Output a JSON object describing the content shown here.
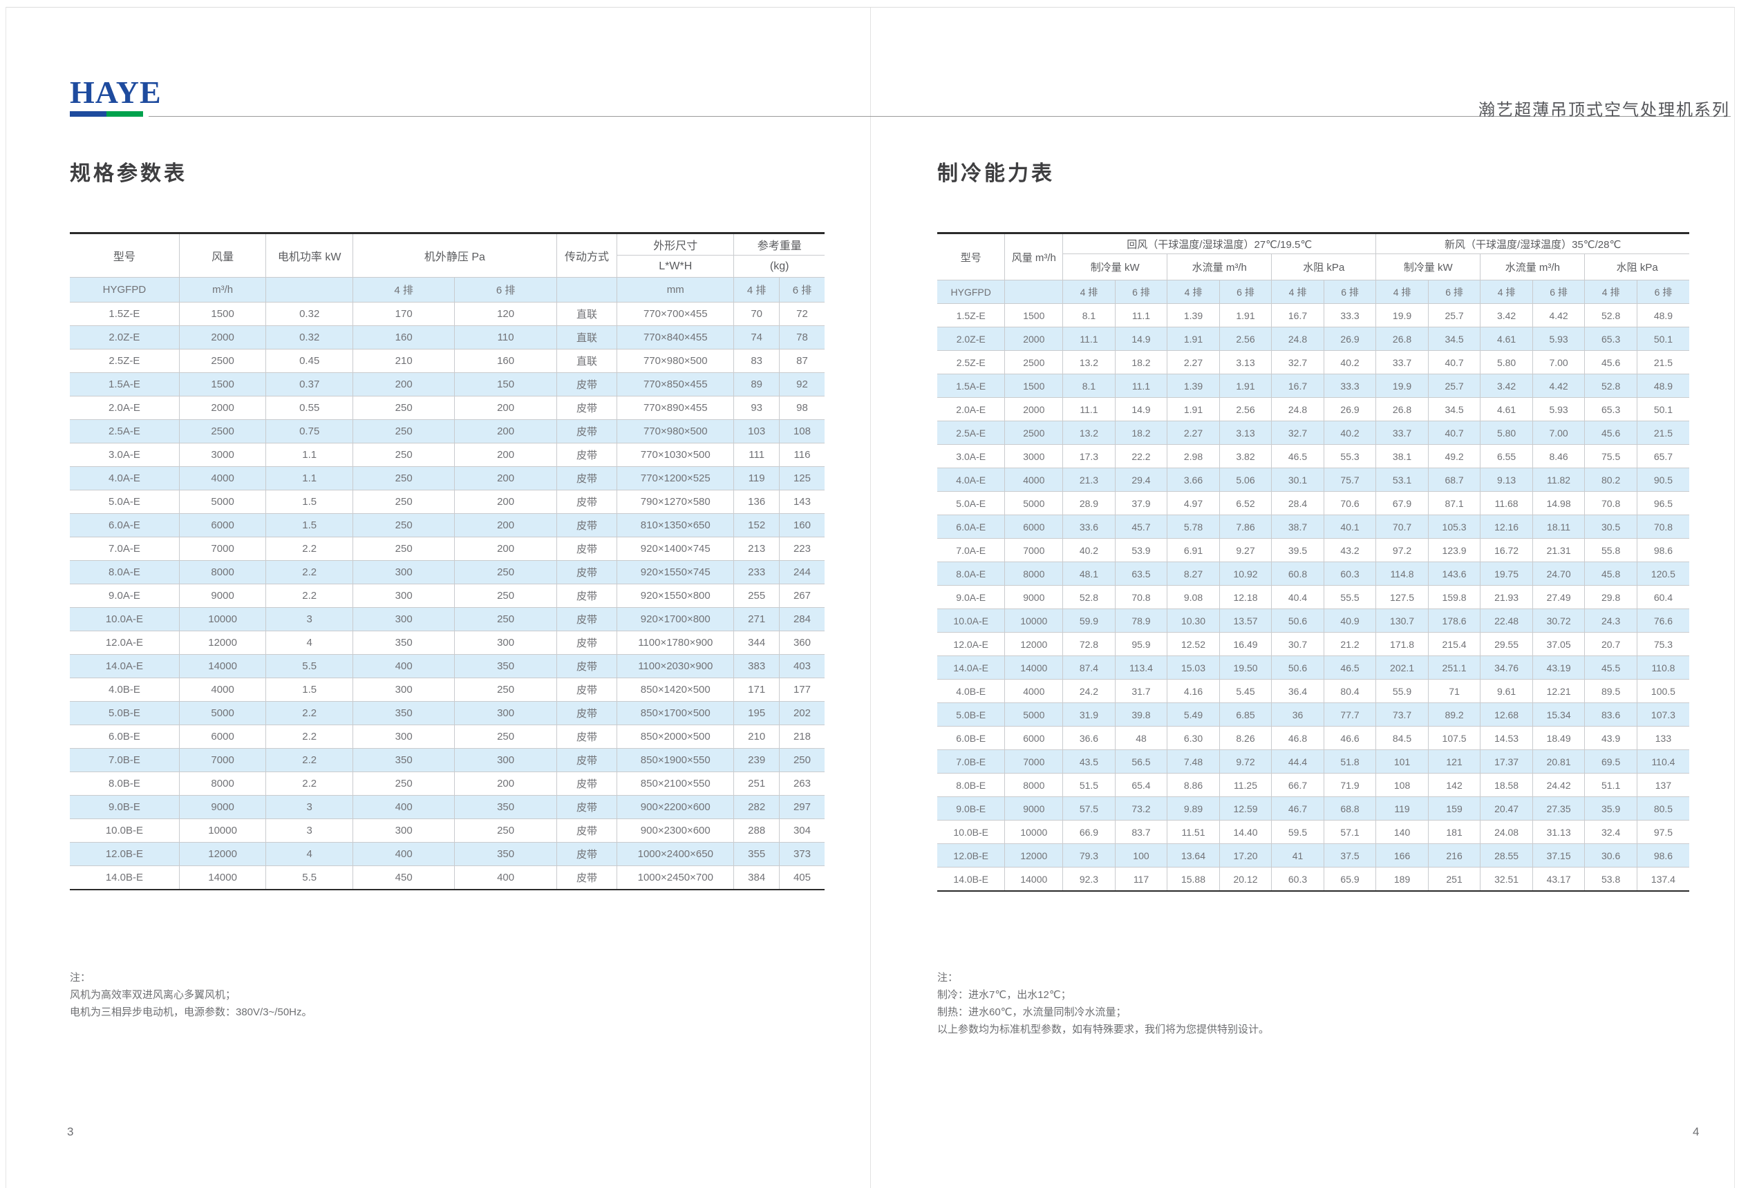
{
  "header": {
    "logo_text": "HAYE",
    "series_title": "瀚艺超薄吊顶式空气处理机系列"
  },
  "left_page": {
    "section_title": "规格参数表",
    "page_number": "3",
    "table": {
      "head": {
        "model": "型号",
        "airflow": "风量",
        "power": "电机功率 kW",
        "pressure": "机外静压 Pa",
        "drive": "传动方式",
        "dims": "外形尺寸",
        "dims_sub": "L*W*H",
        "weight": "参考重量",
        "weight_sub": "(kg)",
        "unit_model": "HYGFPD",
        "unit_airflow": "m³/h",
        "unit_mm": "mm",
        "col4": "4 排",
        "col6": "6 排"
      },
      "rows": [
        [
          "1.5Z-E",
          "1500",
          "0.32",
          "170",
          "120",
          "直联",
          "770×700×455",
          "70",
          "72"
        ],
        [
          "2.0Z-E",
          "2000",
          "0.32",
          "160",
          "110",
          "直联",
          "770×840×455",
          "74",
          "78"
        ],
        [
          "2.5Z-E",
          "2500",
          "0.45",
          "210",
          "160",
          "直联",
          "770×980×500",
          "83",
          "87"
        ],
        [
          "1.5A-E",
          "1500",
          "0.37",
          "200",
          "150",
          "皮带",
          "770×850×455",
          "89",
          "92"
        ],
        [
          "2.0A-E",
          "2000",
          "0.55",
          "250",
          "200",
          "皮带",
          "770×890×455",
          "93",
          "98"
        ],
        [
          "2.5A-E",
          "2500",
          "0.75",
          "250",
          "200",
          "皮带",
          "770×980×500",
          "103",
          "108"
        ],
        [
          "3.0A-E",
          "3000",
          "1.1",
          "250",
          "200",
          "皮带",
          "770×1030×500",
          "111",
          "116"
        ],
        [
          "4.0A-E",
          "4000",
          "1.1",
          "250",
          "200",
          "皮带",
          "770×1200×525",
          "119",
          "125"
        ],
        [
          "5.0A-E",
          "5000",
          "1.5",
          "250",
          "200",
          "皮带",
          "790×1270×580",
          "136",
          "143"
        ],
        [
          "6.0A-E",
          "6000",
          "1.5",
          "250",
          "200",
          "皮带",
          "810×1350×650",
          "152",
          "160"
        ],
        [
          "7.0A-E",
          "7000",
          "2.2",
          "250",
          "200",
          "皮带",
          "920×1400×745",
          "213",
          "223"
        ],
        [
          "8.0A-E",
          "8000",
          "2.2",
          "300",
          "250",
          "皮带",
          "920×1550×745",
          "233",
          "244"
        ],
        [
          "9.0A-E",
          "9000",
          "2.2",
          "300",
          "250",
          "皮带",
          "920×1550×800",
          "255",
          "267"
        ],
        [
          "10.0A-E",
          "10000",
          "3",
          "300",
          "250",
          "皮带",
          "920×1700×800",
          "271",
          "284"
        ],
        [
          "12.0A-E",
          "12000",
          "4",
          "350",
          "300",
          "皮带",
          "1100×1780×900",
          "344",
          "360"
        ],
        [
          "14.0A-E",
          "14000",
          "5.5",
          "400",
          "350",
          "皮带",
          "1100×2030×900",
          "383",
          "403"
        ],
        [
          "4.0B-E",
          "4000",
          "1.5",
          "300",
          "250",
          "皮带",
          "850×1420×500",
          "171",
          "177"
        ],
        [
          "5.0B-E",
          "5000",
          "2.2",
          "350",
          "300",
          "皮带",
          "850×1700×500",
          "195",
          "202"
        ],
        [
          "6.0B-E",
          "6000",
          "2.2",
          "300",
          "250",
          "皮带",
          "850×2000×500",
          "210",
          "218"
        ],
        [
          "7.0B-E",
          "7000",
          "2.2",
          "350",
          "300",
          "皮带",
          "850×1900×550",
          "239",
          "250"
        ],
        [
          "8.0B-E",
          "8000",
          "2.2",
          "250",
          "200",
          "皮带",
          "850×2100×550",
          "251",
          "263"
        ],
        [
          "9.0B-E",
          "9000",
          "3",
          "400",
          "350",
          "皮带",
          "900×2200×600",
          "282",
          "297"
        ],
        [
          "10.0B-E",
          "10000",
          "3",
          "300",
          "250",
          "皮带",
          "900×2300×600",
          "288",
          "304"
        ],
        [
          "12.0B-E",
          "12000",
          "4",
          "400",
          "350",
          "皮带",
          "1000×2400×650",
          "355",
          "373"
        ],
        [
          "14.0B-E",
          "14000",
          "5.5",
          "450",
          "400",
          "皮带",
          "1000×2450×700",
          "384",
          "405"
        ]
      ]
    },
    "notes": [
      "注：",
      "风机为高效率双进风离心多翼风机；",
      "电机为三相异步电动机，电源参数：380V/3~/50Hz。"
    ]
  },
  "right_page": {
    "section_title": "制冷能力表",
    "page_number": "4",
    "table": {
      "head": {
        "model": "型号",
        "airflow": "风量 m³/h",
        "return_air": "回风（干球温度/湿球温度）27℃/19.5℃",
        "fresh_air": "新风（干球温度/湿球温度）35℃/28℃",
        "cooling": "制冷量 kW",
        "flow": "水流量 m³/h",
        "resistance": "水阻 kPa",
        "unit_model": "HYGFPD",
        "col4": "4 排",
        "col6": "6 排"
      },
      "rows": [
        [
          "1.5Z-E",
          "1500",
          "8.1",
          "11.1",
          "1.39",
          "1.91",
          "16.7",
          "33.3",
          "19.9",
          "25.7",
          "3.42",
          "4.42",
          "52.8",
          "48.9"
        ],
        [
          "2.0Z-E",
          "2000",
          "11.1",
          "14.9",
          "1.91",
          "2.56",
          "24.8",
          "26.9",
          "26.8",
          "34.5",
          "4.61",
          "5.93",
          "65.3",
          "50.1"
        ],
        [
          "2.5Z-E",
          "2500",
          "13.2",
          "18.2",
          "2.27",
          "3.13",
          "32.7",
          "40.2",
          "33.7",
          "40.7",
          "5.80",
          "7.00",
          "45.6",
          "21.5"
        ],
        [
          "1.5A-E",
          "1500",
          "8.1",
          "11.1",
          "1.39",
          "1.91",
          "16.7",
          "33.3",
          "19.9",
          "25.7",
          "3.42",
          "4.42",
          "52.8",
          "48.9"
        ],
        [
          "2.0A-E",
          "2000",
          "11.1",
          "14.9",
          "1.91",
          "2.56",
          "24.8",
          "26.9",
          "26.8",
          "34.5",
          "4.61",
          "5.93",
          "65.3",
          "50.1"
        ],
        [
          "2.5A-E",
          "2500",
          "13.2",
          "18.2",
          "2.27",
          "3.13",
          "32.7",
          "40.2",
          "33.7",
          "40.7",
          "5.80",
          "7.00",
          "45.6",
          "21.5"
        ],
        [
          "3.0A-E",
          "3000",
          "17.3",
          "22.2",
          "2.98",
          "3.82",
          "46.5",
          "55.3",
          "38.1",
          "49.2",
          "6.55",
          "8.46",
          "75.5",
          "65.7"
        ],
        [
          "4.0A-E",
          "4000",
          "21.3",
          "29.4",
          "3.66",
          "5.06",
          "30.1",
          "75.7",
          "53.1",
          "68.7",
          "9.13",
          "11.82",
          "80.2",
          "90.5"
        ],
        [
          "5.0A-E",
          "5000",
          "28.9",
          "37.9",
          "4.97",
          "6.52",
          "28.4",
          "70.6",
          "67.9",
          "87.1",
          "11.68",
          "14.98",
          "70.8",
          "96.5"
        ],
        [
          "6.0A-E",
          "6000",
          "33.6",
          "45.7",
          "5.78",
          "7.86",
          "38.7",
          "40.1",
          "70.7",
          "105.3",
          "12.16",
          "18.11",
          "30.5",
          "70.8"
        ],
        [
          "7.0A-E",
          "7000",
          "40.2",
          "53.9",
          "6.91",
          "9.27",
          "39.5",
          "43.2",
          "97.2",
          "123.9",
          "16.72",
          "21.31",
          "55.8",
          "98.6"
        ],
        [
          "8.0A-E",
          "8000",
          "48.1",
          "63.5",
          "8.27",
          "10.92",
          "60.8",
          "60.3",
          "114.8",
          "143.6",
          "19.75",
          "24.70",
          "45.8",
          "120.5"
        ],
        [
          "9.0A-E",
          "9000",
          "52.8",
          "70.8",
          "9.08",
          "12.18",
          "40.4",
          "55.5",
          "127.5",
          "159.8",
          "21.93",
          "27.49",
          "29.8",
          "60.4"
        ],
        [
          "10.0A-E",
          "10000",
          "59.9",
          "78.9",
          "10.30",
          "13.57",
          "50.6",
          "40.9",
          "130.7",
          "178.6",
          "22.48",
          "30.72",
          "24.3",
          "76.6"
        ],
        [
          "12.0A-E",
          "12000",
          "72.8",
          "95.9",
          "12.52",
          "16.49",
          "30.7",
          "21.2",
          "171.8",
          "215.4",
          "29.55",
          "37.05",
          "20.7",
          "75.3"
        ],
        [
          "14.0A-E",
          "14000",
          "87.4",
          "113.4",
          "15.03",
          "19.50",
          "50.6",
          "46.5",
          "202.1",
          "251.1",
          "34.76",
          "43.19",
          "45.5",
          "110.8"
        ],
        [
          "4.0B-E",
          "4000",
          "24.2",
          "31.7",
          "4.16",
          "5.45",
          "36.4",
          "80.4",
          "55.9",
          "71",
          "9.61",
          "12.21",
          "89.5",
          "100.5"
        ],
        [
          "5.0B-E",
          "5000",
          "31.9",
          "39.8",
          "5.49",
          "6.85",
          "36",
          "77.7",
          "73.7",
          "89.2",
          "12.68",
          "15.34",
          "83.6",
          "107.3"
        ],
        [
          "6.0B-E",
          "6000",
          "36.6",
          "48",
          "6.30",
          "8.26",
          "46.8",
          "46.6",
          "84.5",
          "107.5",
          "14.53",
          "18.49",
          "43.9",
          "133"
        ],
        [
          "7.0B-E",
          "7000",
          "43.5",
          "56.5",
          "7.48",
          "9.72",
          "44.4",
          "51.8",
          "101",
          "121",
          "17.37",
          "20.81",
          "69.5",
          "110.4"
        ],
        [
          "8.0B-E",
          "8000",
          "51.5",
          "65.4",
          "8.86",
          "11.25",
          "66.7",
          "71.9",
          "108",
          "142",
          "18.58",
          "24.42",
          "51.1",
          "137"
        ],
        [
          "9.0B-E",
          "9000",
          "57.5",
          "73.2",
          "9.89",
          "12.59",
          "46.7",
          "68.8",
          "119",
          "159",
          "20.47",
          "27.35",
          "35.9",
          "80.5"
        ],
        [
          "10.0B-E",
          "10000",
          "66.9",
          "83.7",
          "11.51",
          "14.40",
          "59.5",
          "57.1",
          "140",
          "181",
          "24.08",
          "31.13",
          "32.4",
          "97.5"
        ],
        [
          "12.0B-E",
          "12000",
          "79.3",
          "100",
          "13.64",
          "17.20",
          "41",
          "37.5",
          "166",
          "216",
          "28.55",
          "37.15",
          "30.6",
          "98.6"
        ],
        [
          "14.0B-E",
          "14000",
          "92.3",
          "117",
          "15.88",
          "20.12",
          "60.3",
          "65.9",
          "189",
          "251",
          "32.51",
          "43.17",
          "53.8",
          "137.4"
        ]
      ]
    },
    "notes": [
      "注：",
      "制冷：进水7℃，出水12℃；",
      "制热：进水60℃，水流量同制冷水流量；",
      "以上参数均为标准机型参数，如有特殊要求，我们将为您提供特别设计。"
    ]
  }
}
